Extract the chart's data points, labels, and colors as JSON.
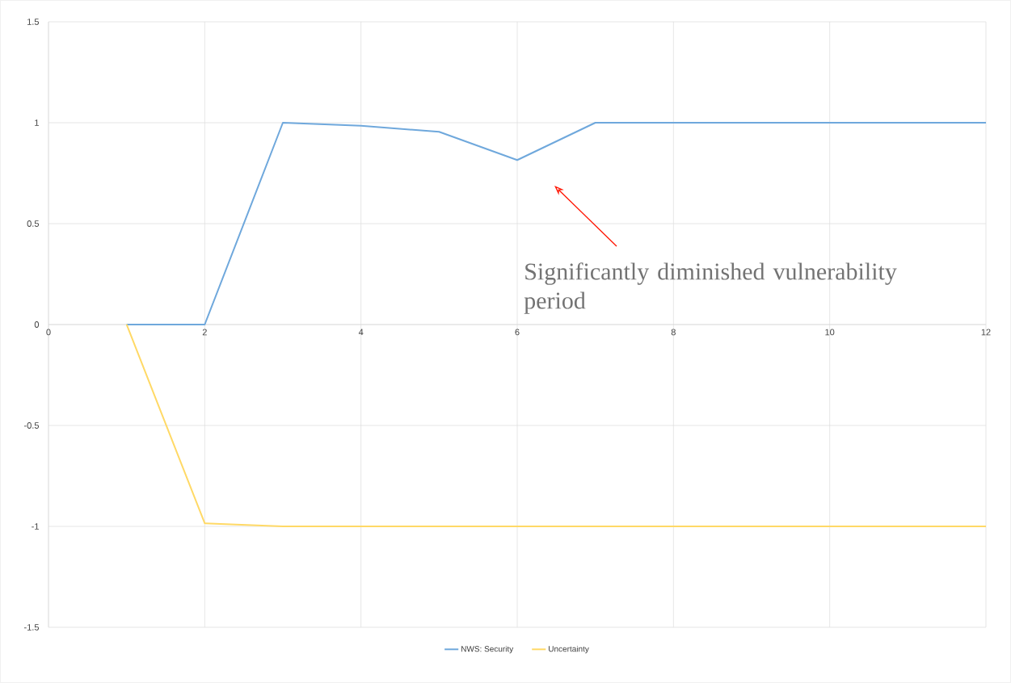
{
  "chart_data": {
    "type": "line",
    "x": [
      1,
      2,
      3,
      4,
      5,
      6,
      7,
      8,
      9,
      10,
      11,
      12
    ],
    "series": [
      {
        "name": "NWS: Security",
        "color": "#6fa8dc",
        "values": [
          0,
          0,
          1,
          0.985,
          0.955,
          0.815,
          1,
          1,
          1,
          1,
          1,
          1
        ]
      },
      {
        "name": "Uncertainty",
        "color": "#ffd966",
        "values": [
          0,
          -0.985,
          -1,
          -1,
          -1,
          -1,
          -1,
          -1,
          -1,
          -1,
          -1,
          -1
        ]
      }
    ],
    "xlim": [
      0,
      12
    ],
    "ylim": [
      -1.5,
      1.5
    ],
    "xticks": [
      0,
      2,
      4,
      6,
      8,
      10,
      12
    ],
    "yticks": [
      -1.5,
      -1,
      -0.5,
      0,
      0.5,
      1,
      1.5
    ],
    "grid": true,
    "legend": "bottom",
    "annotations": [
      "Significantly diminished vulnerability period"
    ]
  }
}
